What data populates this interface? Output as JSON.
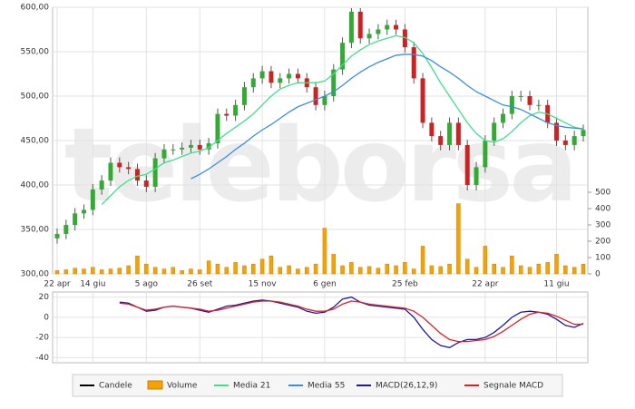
{
  "chart_data": [
    {
      "type": "candlestick",
      "watermark": "teleborsa",
      "categories": [
        "22 apr",
        null,
        null,
        null,
        "14 giu",
        null,
        null,
        null,
        null,
        null,
        "5 ago",
        null,
        null,
        null,
        null,
        null,
        "26 set",
        null,
        null,
        null,
        null,
        null,
        null,
        "15 nov",
        null,
        null,
        null,
        null,
        null,
        null,
        "6 gen",
        null,
        null,
        null,
        null,
        null,
        null,
        null,
        null,
        "25 feb",
        null,
        null,
        null,
        null,
        null,
        null,
        null,
        null,
        "22 apr",
        null,
        null,
        null,
        null,
        null,
        null,
        null,
        "11 giu",
        null,
        null,
        null
      ],
      "ylim": [
        300,
        600
      ],
      "yticks": [
        {
          "value": 300,
          "label": "300,00"
        },
        {
          "value": 350,
          "label": "350,00"
        },
        {
          "value": 400,
          "label": "400,00"
        },
        {
          "value": 450,
          "label": "450,00"
        },
        {
          "value": 500,
          "label": "500,00"
        },
        {
          "value": 550,
          "label": "550,00"
        },
        {
          "value": 600,
          "label": "600,00"
        }
      ],
      "y2lim": [
        0,
        500
      ],
      "y2ticks": [
        0,
        100,
        200,
        300,
        400,
        500
      ],
      "grid": true,
      "up_color": "#33aa33",
      "down_color": "#cc2222",
      "series": [
        {
          "name": "Candele",
          "color": "#000000",
          "open": [
            340,
            345,
            355,
            368,
            372,
            395,
            405,
            425,
            420,
            418,
            405,
            398,
            430,
            440,
            440,
            442,
            445,
            440,
            447,
            480,
            478,
            490,
            510,
            520,
            528,
            515,
            520,
            525,
            520,
            510,
            490,
            500,
            530,
            560,
            595,
            565,
            570,
            575,
            580,
            575,
            555,
            520,
            470,
            455,
            445,
            470,
            445,
            400,
            420,
            450,
            470,
            480,
            500,
            500,
            490,
            490,
            470,
            450,
            445,
            455
          ],
          "high": [
            351,
            361,
            374,
            378,
            401,
            411,
            431,
            431,
            426,
            424,
            411,
            436,
            446,
            446,
            448,
            451,
            451,
            453,
            486,
            486,
            496,
            516,
            526,
            534,
            534,
            526,
            531,
            531,
            526,
            516,
            506,
            536,
            566,
            599,
            599,
            576,
            581,
            586,
            586,
            581,
            561,
            526,
            476,
            461,
            476,
            476,
            451,
            426,
            456,
            476,
            486,
            506,
            506,
            506,
            496,
            496,
            476,
            456,
            461,
            468
          ],
          "low": [
            334,
            339,
            349,
            362,
            366,
            389,
            399,
            414,
            412,
            399,
            392,
            392,
            424,
            434,
            434,
            436,
            434,
            434,
            441,
            472,
            472,
            484,
            504,
            514,
            509,
            509,
            514,
            514,
            504,
            484,
            484,
            494,
            524,
            554,
            559,
            559,
            564,
            569,
            569,
            549,
            514,
            464,
            449,
            439,
            439,
            439,
            394,
            394,
            414,
            444,
            464,
            474,
            494,
            484,
            484,
            464,
            444,
            439,
            439,
            449
          ],
          "close": [
            345,
            355,
            368,
            372,
            395,
            405,
            425,
            420,
            418,
            405,
            398,
            430,
            440,
            440,
            442,
            445,
            440,
            447,
            480,
            478,
            490,
            510,
            520,
            528,
            515,
            520,
            525,
            520,
            510,
            490,
            500,
            530,
            560,
            595,
            565,
            570,
            575,
            580,
            575,
            555,
            520,
            470,
            455,
            445,
            470,
            445,
            400,
            420,
            450,
            470,
            480,
            500,
            500,
            490,
            490,
            470,
            450,
            445,
            455,
            462
          ]
        },
        {
          "name": "Volume",
          "color": "#f5a300",
          "axis": "y2",
          "values": [
            20,
            25,
            35,
            30,
            40,
            25,
            30,
            35,
            50,
            110,
            60,
            40,
            30,
            40,
            20,
            30,
            25,
            80,
            60,
            40,
            70,
            50,
            60,
            90,
            110,
            40,
            50,
            30,
            40,
            60,
            280,
            120,
            50,
            70,
            40,
            45,
            35,
            60,
            50,
            70,
            30,
            170,
            50,
            45,
            60,
            430,
            90,
            40,
            170,
            60,
            40,
            110,
            50,
            40,
            60,
            70,
            120,
            50,
            40,
            60
          ]
        },
        {
          "name": "Media 21",
          "color": "#3ee08a",
          "values": [
            null,
            null,
            null,
            null,
            null,
            378,
            388,
            398,
            405,
            410,
            412,
            418,
            425,
            428,
            432,
            436,
            438,
            442,
            450,
            458,
            465,
            472,
            480,
            490,
            500,
            508,
            512,
            515,
            515,
            515,
            517,
            525,
            535,
            545,
            552,
            558,
            562,
            565,
            568,
            566,
            560,
            548,
            532,
            515,
            500,
            485,
            470,
            458,
            450,
            448,
            452,
            460,
            470,
            478,
            482,
            480,
            475,
            470,
            465,
            463
          ]
        },
        {
          "name": "Media 55",
          "color": "#3a8ee0",
          "values": [
            null,
            null,
            null,
            null,
            null,
            null,
            null,
            null,
            null,
            null,
            null,
            null,
            null,
            null,
            null,
            407,
            412,
            418,
            425,
            432,
            440,
            447,
            455,
            462,
            468,
            475,
            482,
            488,
            492,
            496,
            500,
            505,
            512,
            520,
            527,
            533,
            538,
            542,
            546,
            547,
            547,
            545,
            540,
            533,
            527,
            520,
            512,
            505,
            500,
            495,
            490,
            488,
            485,
            480,
            475,
            470,
            467,
            465,
            464,
            463
          ]
        }
      ]
    },
    {
      "type": "line",
      "ylim": [
        -45,
        25
      ],
      "yticks": [
        20,
        0,
        -20,
        -40
      ],
      "grid": true,
      "series": [
        {
          "name": "MACD(26,12,9)",
          "color": "#1a1aa0",
          "values": [
            null,
            null,
            null,
            null,
            null,
            null,
            null,
            15,
            14,
            10,
            6,
            7,
            10,
            11,
            10,
            9,
            7,
            5,
            8,
            11,
            12,
            14,
            16,
            17,
            16,
            14,
            12,
            10,
            6,
            4,
            5,
            10,
            18,
            20,
            15,
            12,
            11,
            10,
            9,
            8,
            0,
            -12,
            -22,
            -28,
            -30,
            -25,
            -22,
            -22,
            -20,
            -15,
            -8,
            0,
            5,
            6,
            5,
            3,
            -2,
            -8,
            -10,
            -6
          ]
        },
        {
          "name": "Segnale MACD",
          "color": "#e02020",
          "values": [
            null,
            null,
            null,
            null,
            null,
            null,
            null,
            14,
            13,
            10,
            7,
            8,
            10,
            11,
            10,
            9,
            8,
            6,
            7,
            9,
            11,
            13,
            15,
            16,
            16,
            15,
            13,
            11,
            8,
            6,
            6,
            8,
            13,
            16,
            15,
            13,
            12,
            11,
            10,
            9,
            6,
            0,
            -8,
            -16,
            -22,
            -24,
            -24,
            -23,
            -22,
            -19,
            -14,
            -8,
            -2,
            3,
            5,
            4,
            1,
            -3,
            -7,
            -7
          ]
        }
      ]
    }
  ]
}
